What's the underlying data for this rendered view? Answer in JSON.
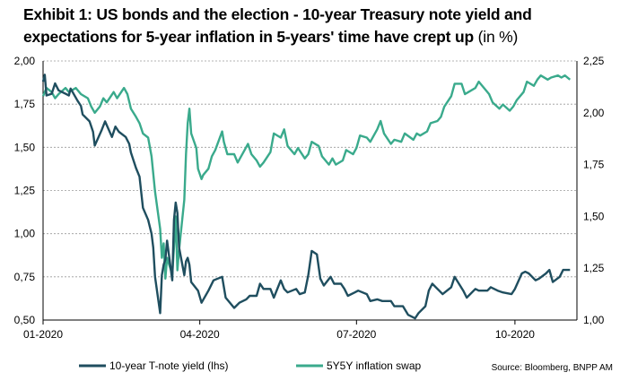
{
  "title": {
    "main": "Exhibit 1: US bonds and the election - 10-year Treasury note yield and expectations for 5-year inflation in 5-years' time have crept up",
    "unit": "(in %)"
  },
  "source": "Source: Bloomberg, BNPP AM",
  "colors": {
    "t_note": "#1f4e5f",
    "swap": "#3aaa8c",
    "grid": "#9a9a9a"
  },
  "chart_data": {
    "type": "line",
    "x_tick_labels": [
      "01-2020",
      "04-2020",
      "07-2020",
      "10-2020"
    ],
    "x_ticks": [
      "2020-01-01",
      "2020-04-01",
      "2020-07-01",
      "2020-10-01"
    ],
    "xlim": [
      "2020-01-01",
      "2020-11-06"
    ],
    "y_left": {
      "ylim": [
        0.5,
        2.0
      ],
      "ticks": [
        "0,50",
        "0,75",
        "1,00",
        "1,25",
        "1,50",
        "1,75",
        "2,00"
      ]
    },
    "y_right": {
      "ylim": [
        1.0,
        2.25
      ],
      "ticks": [
        "1,00",
        "1,25",
        "1,50",
        "1,75",
        "2,00",
        "2,25"
      ]
    },
    "grid": true,
    "legend_position": "bottom",
    "series": [
      {
        "name": "10-year T-note yield (lhs)",
        "axis": "left",
        "points": [
          [
            "2020-01-01",
            1.88
          ],
          [
            "2020-01-02",
            1.92
          ],
          [
            "2020-01-03",
            1.8
          ],
          [
            "2020-01-06",
            1.81
          ],
          [
            "2020-01-08",
            1.87
          ],
          [
            "2020-01-10",
            1.83
          ],
          [
            "2020-01-14",
            1.81
          ],
          [
            "2020-01-16",
            1.8
          ],
          [
            "2020-01-17",
            1.84
          ],
          [
            "2020-01-21",
            1.77
          ],
          [
            "2020-01-23",
            1.74
          ],
          [
            "2020-01-24",
            1.69
          ],
          [
            "2020-01-28",
            1.65
          ],
          [
            "2020-01-30",
            1.59
          ],
          [
            "2020-01-31",
            1.51
          ],
          [
            "2020-02-04",
            1.6
          ],
          [
            "2020-02-06",
            1.65
          ],
          [
            "2020-02-10",
            1.56
          ],
          [
            "2020-02-12",
            1.62
          ],
          [
            "2020-02-14",
            1.59
          ],
          [
            "2020-02-18",
            1.56
          ],
          [
            "2020-02-20",
            1.52
          ],
          [
            "2020-02-21",
            1.47
          ],
          [
            "2020-02-24",
            1.38
          ],
          [
            "2020-02-26",
            1.33
          ],
          [
            "2020-02-28",
            1.15
          ],
          [
            "2020-03-02",
            1.08
          ],
          [
            "2020-03-04",
            1.0
          ],
          [
            "2020-03-05",
            0.92
          ],
          [
            "2020-03-06",
            0.75
          ],
          [
            "2020-03-09",
            0.54
          ],
          [
            "2020-03-10",
            0.76
          ],
          [
            "2020-03-11",
            0.82
          ],
          [
            "2020-03-12",
            0.85
          ],
          [
            "2020-03-13",
            0.96
          ],
          [
            "2020-03-16",
            0.73
          ],
          [
            "2020-03-17",
            1.08
          ],
          [
            "2020-03-18",
            1.18
          ],
          [
            "2020-03-19",
            1.12
          ],
          [
            "2020-03-20",
            0.92
          ],
          [
            "2020-03-23",
            0.76
          ],
          [
            "2020-03-24",
            0.84
          ],
          [
            "2020-03-25",
            0.86
          ],
          [
            "2020-03-26",
            0.82
          ],
          [
            "2020-03-27",
            0.72
          ],
          [
            "2020-03-31",
            0.67
          ],
          [
            "2020-04-02",
            0.6
          ],
          [
            "2020-04-06",
            0.67
          ],
          [
            "2020-04-09",
            0.73
          ],
          [
            "2020-04-14",
            0.75
          ],
          [
            "2020-04-16",
            0.63
          ],
          [
            "2020-04-21",
            0.57
          ],
          [
            "2020-04-24",
            0.6
          ],
          [
            "2020-04-28",
            0.62
          ],
          [
            "2020-04-30",
            0.64
          ],
          [
            "2020-05-04",
            0.64
          ],
          [
            "2020-05-06",
            0.71
          ],
          [
            "2020-05-08",
            0.68
          ],
          [
            "2020-05-12",
            0.68
          ],
          [
            "2020-05-14",
            0.63
          ],
          [
            "2020-05-18",
            0.73
          ],
          [
            "2020-05-20",
            0.68
          ],
          [
            "2020-05-22",
            0.66
          ],
          [
            "2020-05-27",
            0.68
          ],
          [
            "2020-05-29",
            0.65
          ],
          [
            "2020-06-01",
            0.66
          ],
          [
            "2020-06-03",
            0.76
          ],
          [
            "2020-06-05",
            0.9
          ],
          [
            "2020-06-08",
            0.88
          ],
          [
            "2020-06-10",
            0.74
          ],
          [
            "2020-06-12",
            0.7
          ],
          [
            "2020-06-16",
            0.75
          ],
          [
            "2020-06-18",
            0.71
          ],
          [
            "2020-06-22",
            0.71
          ],
          [
            "2020-06-24",
            0.68
          ],
          [
            "2020-06-26",
            0.64
          ],
          [
            "2020-06-30",
            0.66
          ],
          [
            "2020-07-02",
            0.67
          ],
          [
            "2020-07-07",
            0.65
          ],
          [
            "2020-07-09",
            0.61
          ],
          [
            "2020-07-13",
            0.62
          ],
          [
            "2020-07-16",
            0.61
          ],
          [
            "2020-07-21",
            0.61
          ],
          [
            "2020-07-23",
            0.58
          ],
          [
            "2020-07-28",
            0.58
          ],
          [
            "2020-07-31",
            0.53
          ],
          [
            "2020-08-04",
            0.51
          ],
          [
            "2020-08-06",
            0.54
          ],
          [
            "2020-08-10",
            0.58
          ],
          [
            "2020-08-12",
            0.67
          ],
          [
            "2020-08-14",
            0.71
          ],
          [
            "2020-08-18",
            0.67
          ],
          [
            "2020-08-20",
            0.65
          ],
          [
            "2020-08-25",
            0.69
          ],
          [
            "2020-08-27",
            0.75
          ],
          [
            "2020-09-01",
            0.67
          ],
          [
            "2020-09-03",
            0.63
          ],
          [
            "2020-09-08",
            0.68
          ],
          [
            "2020-09-10",
            0.67
          ],
          [
            "2020-09-15",
            0.67
          ],
          [
            "2020-09-17",
            0.69
          ],
          [
            "2020-09-21",
            0.67
          ],
          [
            "2020-09-24",
            0.66
          ],
          [
            "2020-09-29",
            0.65
          ],
          [
            "2020-10-01",
            0.68
          ],
          [
            "2020-10-05",
            0.77
          ],
          [
            "2020-10-07",
            0.78
          ],
          [
            "2020-10-09",
            0.77
          ],
          [
            "2020-10-13",
            0.73
          ],
          [
            "2020-10-15",
            0.74
          ],
          [
            "2020-10-19",
            0.77
          ],
          [
            "2020-10-21",
            0.79
          ],
          [
            "2020-10-23",
            0.72
          ],
          [
            "2020-10-27",
            0.75
          ],
          [
            "2020-10-29",
            0.79
          ],
          [
            "2020-11-02",
            0.79
          ]
        ]
      },
      {
        "name": "5Y5Y inflation swap",
        "axis": "right",
        "points": [
          [
            "2020-01-01",
            2.08
          ],
          [
            "2020-01-03",
            2.12
          ],
          [
            "2020-01-06",
            2.1
          ],
          [
            "2020-01-08",
            2.07
          ],
          [
            "2020-01-10",
            2.09
          ],
          [
            "2020-01-14",
            2.12
          ],
          [
            "2020-01-16",
            2.1
          ],
          [
            "2020-01-20",
            2.12
          ],
          [
            "2020-01-23",
            2.09
          ],
          [
            "2020-01-27",
            2.07
          ],
          [
            "2020-01-29",
            2.03
          ],
          [
            "2020-01-31",
            2.0
          ],
          [
            "2020-02-03",
            2.03
          ],
          [
            "2020-02-05",
            2.07
          ],
          [
            "2020-02-07",
            2.05
          ],
          [
            "2020-02-11",
            2.1
          ],
          [
            "2020-02-13",
            2.07
          ],
          [
            "2020-02-17",
            2.12
          ],
          [
            "2020-02-19",
            2.09
          ],
          [
            "2020-02-21",
            2.02
          ],
          [
            "2020-02-24",
            1.98
          ],
          [
            "2020-02-26",
            1.95
          ],
          [
            "2020-02-28",
            1.9
          ],
          [
            "2020-03-02",
            1.88
          ],
          [
            "2020-03-04",
            1.79
          ],
          [
            "2020-03-06",
            1.62
          ],
          [
            "2020-03-09",
            1.44
          ],
          [
            "2020-03-10",
            1.3
          ],
          [
            "2020-03-11",
            1.37
          ],
          [
            "2020-03-12",
            1.2
          ],
          [
            "2020-03-13",
            1.3
          ],
          [
            "2020-03-16",
            1.22
          ],
          [
            "2020-03-17",
            1.35
          ],
          [
            "2020-03-18",
            1.5
          ],
          [
            "2020-03-19",
            1.24
          ],
          [
            "2020-03-20",
            1.34
          ],
          [
            "2020-03-23",
            1.58
          ],
          [
            "2020-03-24",
            1.8
          ],
          [
            "2020-03-25",
            1.95
          ],
          [
            "2020-03-26",
            2.02
          ],
          [
            "2020-03-27",
            1.9
          ],
          [
            "2020-03-30",
            1.83
          ],
          [
            "2020-03-31",
            1.73
          ],
          [
            "2020-04-02",
            1.68
          ],
          [
            "2020-04-03",
            1.7
          ],
          [
            "2020-04-06",
            1.73
          ],
          [
            "2020-04-08",
            1.79
          ],
          [
            "2020-04-10",
            1.82
          ],
          [
            "2020-04-14",
            1.91
          ],
          [
            "2020-04-15",
            1.86
          ],
          [
            "2020-04-17",
            1.8
          ],
          [
            "2020-04-21",
            1.8
          ],
          [
            "2020-04-23",
            1.76
          ],
          [
            "2020-04-27",
            1.82
          ],
          [
            "2020-04-29",
            1.85
          ],
          [
            "2020-05-01",
            1.8
          ],
          [
            "2020-05-04",
            1.77
          ],
          [
            "2020-05-06",
            1.74
          ],
          [
            "2020-05-08",
            1.76
          ],
          [
            "2020-05-12",
            1.81
          ],
          [
            "2020-05-14",
            1.9
          ],
          [
            "2020-05-18",
            1.88
          ],
          [
            "2020-05-20",
            1.92
          ],
          [
            "2020-05-22",
            1.84
          ],
          [
            "2020-05-26",
            1.8
          ],
          [
            "2020-05-28",
            1.83
          ],
          [
            "2020-06-01",
            1.78
          ],
          [
            "2020-06-03",
            1.8
          ],
          [
            "2020-06-05",
            1.86
          ],
          [
            "2020-06-09",
            1.84
          ],
          [
            "2020-06-11",
            1.79
          ],
          [
            "2020-06-15",
            1.75
          ],
          [
            "2020-06-17",
            1.78
          ],
          [
            "2020-06-19",
            1.75
          ],
          [
            "2020-06-23",
            1.77
          ],
          [
            "2020-06-25",
            1.82
          ],
          [
            "2020-06-29",
            1.8
          ],
          [
            "2020-07-01",
            1.83
          ],
          [
            "2020-07-03",
            1.89
          ],
          [
            "2020-07-07",
            1.88
          ],
          [
            "2020-07-09",
            1.86
          ],
          [
            "2020-07-13",
            1.92
          ],
          [
            "2020-07-15",
            1.96
          ],
          [
            "2020-07-17",
            1.9
          ],
          [
            "2020-07-21",
            1.85
          ],
          [
            "2020-07-23",
            1.87
          ],
          [
            "2020-07-27",
            1.86
          ],
          [
            "2020-07-29",
            1.9
          ],
          [
            "2020-08-03",
            1.87
          ],
          [
            "2020-08-05",
            1.9
          ],
          [
            "2020-08-07",
            1.89
          ],
          [
            "2020-08-11",
            1.91
          ],
          [
            "2020-08-13",
            1.95
          ],
          [
            "2020-08-17",
            1.96
          ],
          [
            "2020-08-19",
            1.98
          ],
          [
            "2020-08-21",
            2.03
          ],
          [
            "2020-08-25",
            2.08
          ],
          [
            "2020-08-27",
            2.14
          ],
          [
            "2020-08-31",
            2.14
          ],
          [
            "2020-09-02",
            2.09
          ],
          [
            "2020-09-04",
            2.1
          ],
          [
            "2020-09-08",
            2.12
          ],
          [
            "2020-09-10",
            2.15
          ],
          [
            "2020-09-14",
            2.11
          ],
          [
            "2020-09-16",
            2.09
          ],
          [
            "2020-09-18",
            2.05
          ],
          [
            "2020-09-22",
            2.02
          ],
          [
            "2020-09-24",
            2.04
          ],
          [
            "2020-09-28",
            2.01
          ],
          [
            "2020-09-30",
            2.03
          ],
          [
            "2020-10-02",
            2.06
          ],
          [
            "2020-10-06",
            2.1
          ],
          [
            "2020-10-08",
            2.15
          ],
          [
            "2020-10-12",
            2.13
          ],
          [
            "2020-10-14",
            2.16
          ],
          [
            "2020-10-16",
            2.18
          ],
          [
            "2020-10-20",
            2.16
          ],
          [
            "2020-10-22",
            2.17
          ],
          [
            "2020-10-26",
            2.18
          ],
          [
            "2020-10-28",
            2.17
          ],
          [
            "2020-10-30",
            2.18
          ],
          [
            "2020-11-02",
            2.16
          ]
        ]
      }
    ]
  }
}
